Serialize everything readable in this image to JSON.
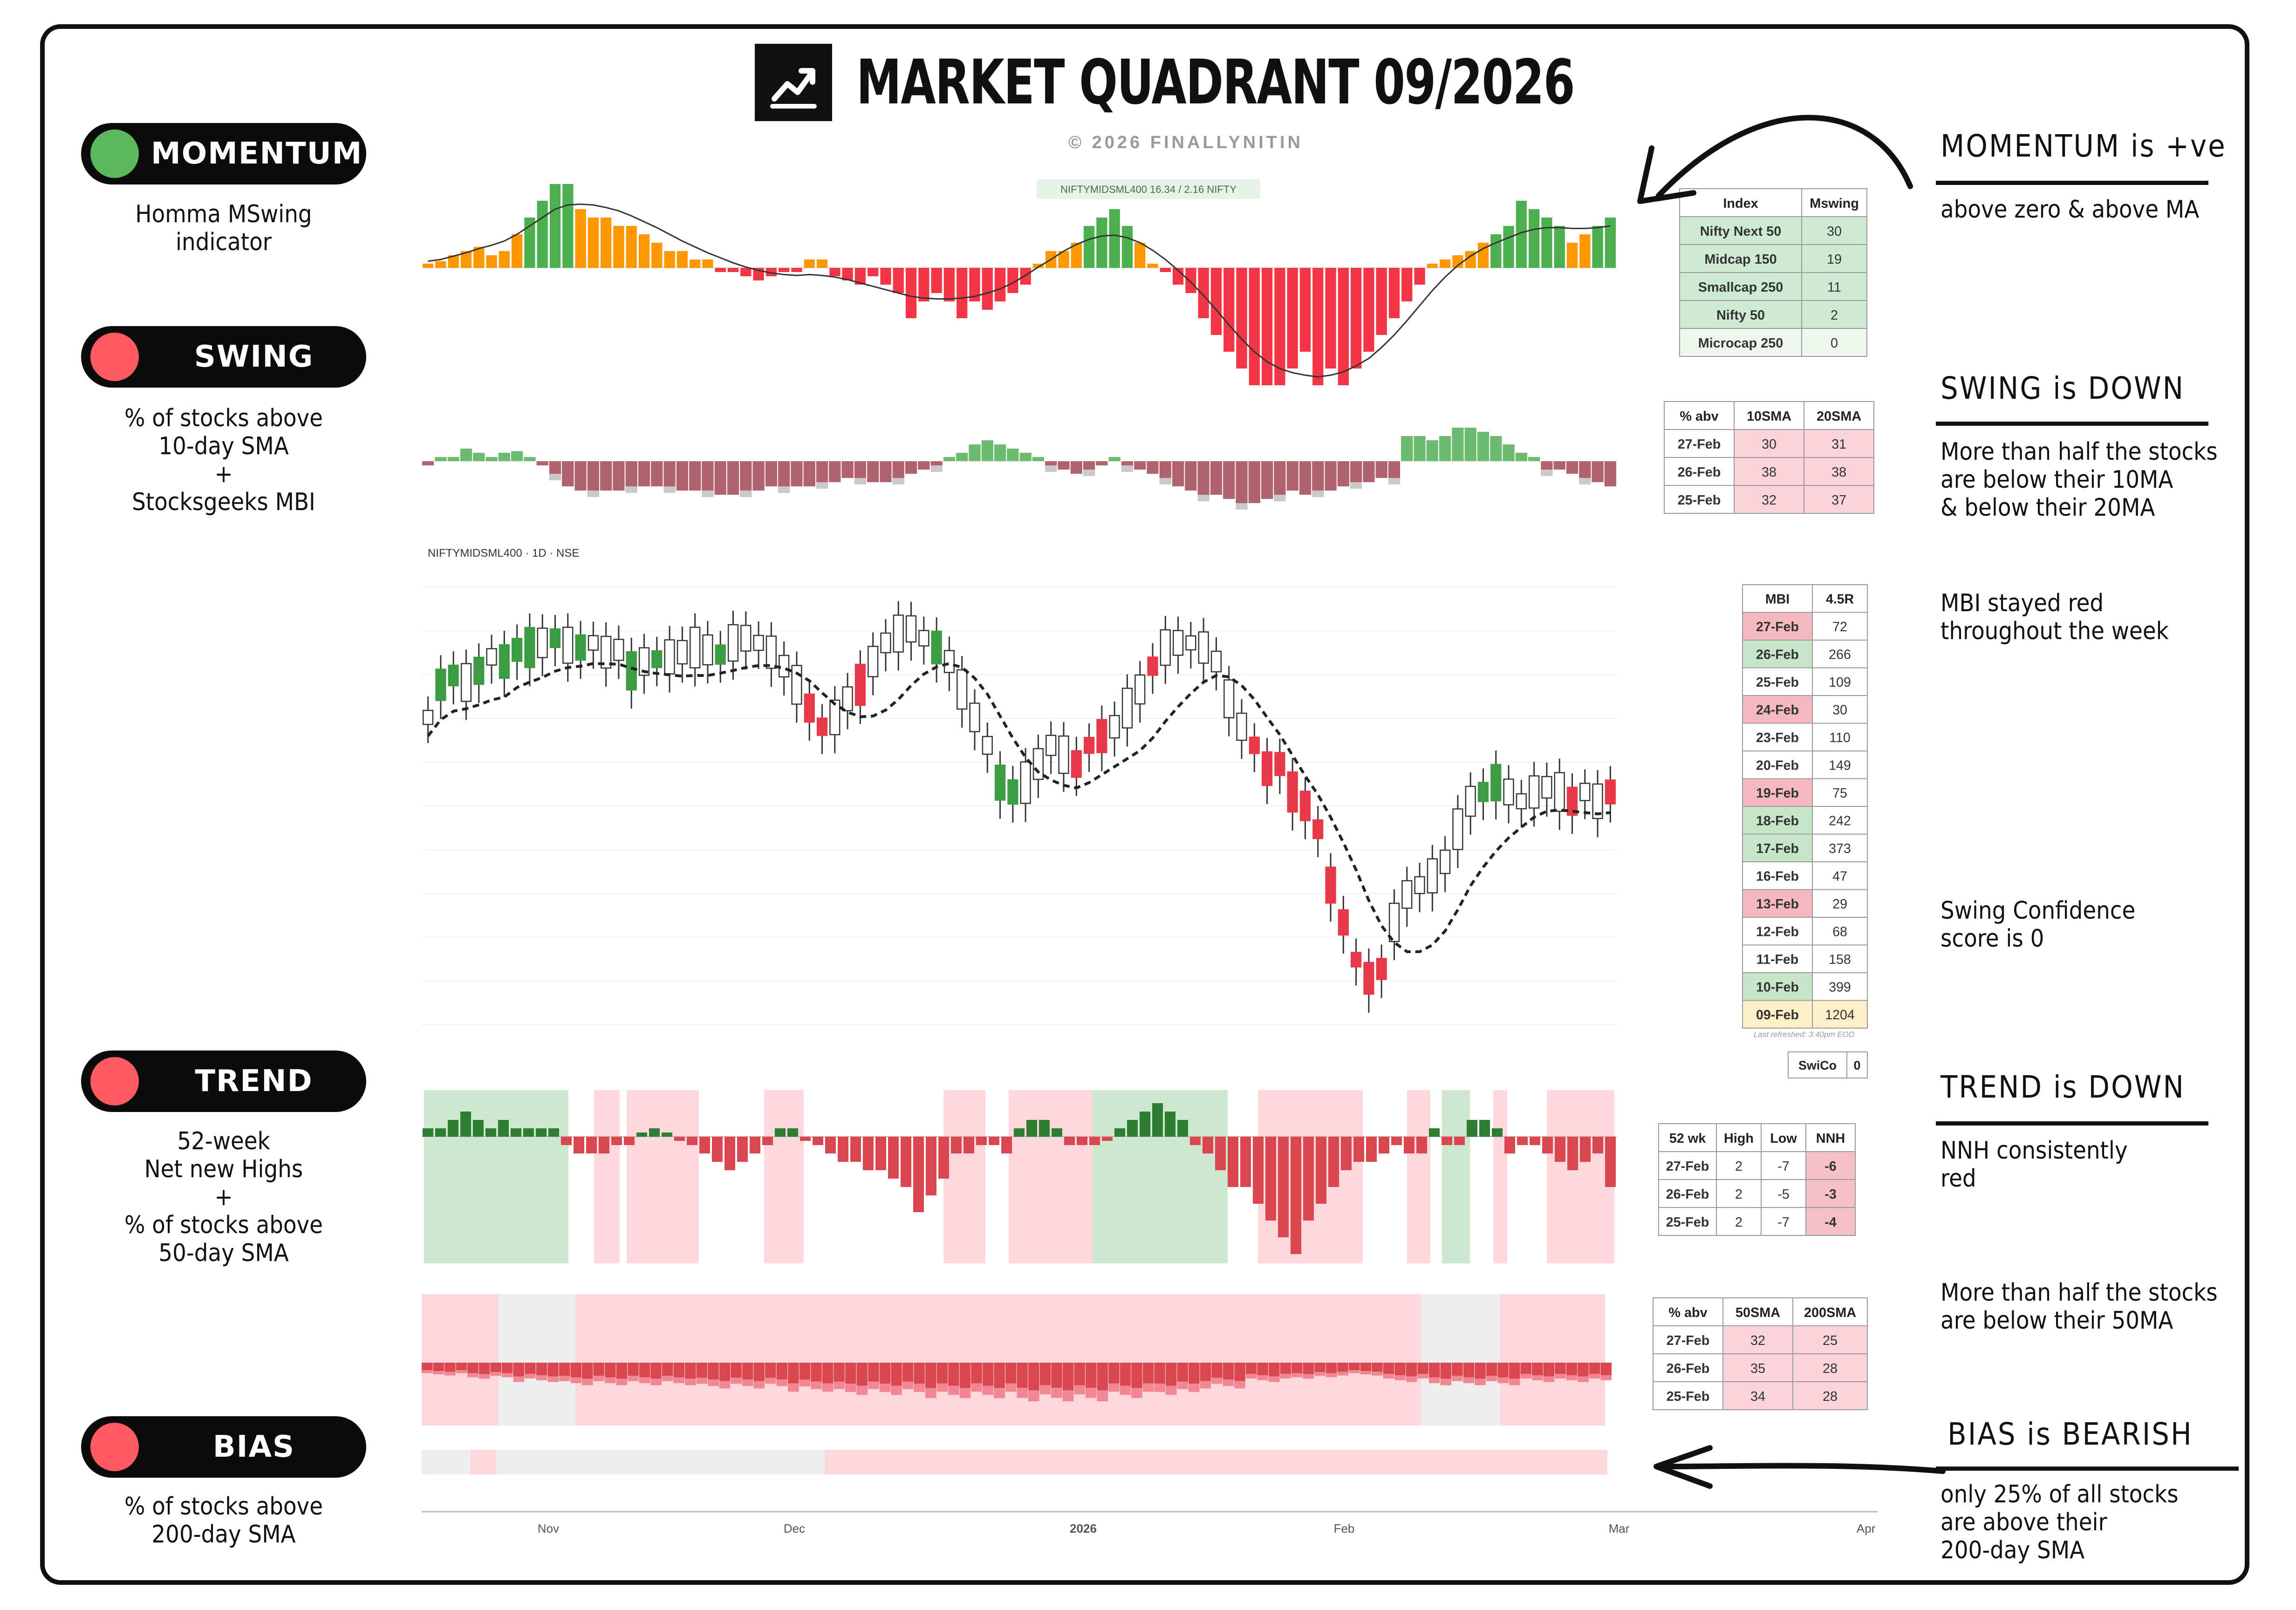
{
  "title": "MARKET QUADRANT 09/2026",
  "copyright": "© 2026 FINALLYNITIN",
  "colors": {
    "green": "#4caf50",
    "red": "#f23645",
    "orange": "#ff9800",
    "bad_dot": "#ff5a5f",
    "good_dot": "#5cb85c",
    "pink": "#fcd7dc",
    "light_green": "#cde8cf"
  },
  "left_panel": [
    {
      "label": "MOMENTUM",
      "status": "green",
      "description": "Homma MSwing\nindicator"
    },
    {
      "label": "SWING",
      "status": "red",
      "description": "% of stocks above\n10-day SMA\n+\nStocksgeeks MBI"
    },
    {
      "label": "TREND",
      "status": "red",
      "description": "52-week\nNet new Highs\n+\n% of stocks above\n50-day SMA"
    },
    {
      "label": "BIAS",
      "status": "red",
      "description": "% of stocks above\n200-day SMA"
    }
  ],
  "right_panel": {
    "momentum": {
      "heading": "MOMENTUM is +ve",
      "text": "above zero & above MA"
    },
    "swing": {
      "heading": "SWING is DOWN",
      "text": "More than half the stocks\nare below their 10MA\n& below their 20MA"
    },
    "mbi_note": "MBI stayed red\nthroughout the week",
    "swico_note": "Swing Confidence\nscore is 0",
    "trend": {
      "heading": "TREND is DOWN",
      "text": "NNH consistently\nred"
    },
    "trend_note": "More than half the stocks\nare below their 50MA",
    "bias": {
      "heading": "BIAS is BEARISH",
      "text": "only 25% of all stocks\nare above their\n200-day SMA"
    }
  },
  "chart_labels": {
    "momentum_legend": "NIFTYMIDSML400  16.34 / 2.16  NIFTY",
    "price_label": "NIFTYMIDSML400 · 1D · NSE",
    "x_ticks": [
      "Nov",
      "Dec",
      "2026",
      "Feb",
      "Mar",
      "Apr"
    ],
    "last_refreshed": "Last refreshed: 3:40pm EOD"
  },
  "tables": {
    "mswing": {
      "headers": [
        "Index",
        "Mswing"
      ],
      "rows": [
        [
          "Nifty Next 50",
          "30"
        ],
        [
          "Midcap 150",
          "19"
        ],
        [
          "Smallcap 250",
          "11"
        ],
        [
          "Nifty 50",
          "2"
        ],
        [
          "Microcap 250",
          "0"
        ]
      ]
    },
    "swing_abv": {
      "headers": [
        "% abv",
        "10SMA",
        "20SMA"
      ],
      "rows": [
        [
          "27-Feb",
          "30",
          "31"
        ],
        [
          "26-Feb",
          "38",
          "38"
        ],
        [
          "25-Feb",
          "32",
          "37"
        ]
      ]
    },
    "mbi": {
      "headers": [
        "MBI",
        "4.5R"
      ],
      "rows": [
        [
          "27-Feb",
          "72",
          "red"
        ],
        [
          "26-Feb",
          "266",
          "green"
        ],
        [
          "25-Feb",
          "109",
          "none"
        ],
        [
          "24-Feb",
          "30",
          "red"
        ],
        [
          "23-Feb",
          "110",
          "none"
        ],
        [
          "20-Feb",
          "149",
          "none"
        ],
        [
          "19-Feb",
          "75",
          "red"
        ],
        [
          "18-Feb",
          "242",
          "green"
        ],
        [
          "17-Feb",
          "373",
          "green"
        ],
        [
          "16-Feb",
          "47",
          "none"
        ],
        [
          "13-Feb",
          "29",
          "red"
        ],
        [
          "12-Feb",
          "68",
          "none"
        ],
        [
          "11-Feb",
          "158",
          "none"
        ],
        [
          "10-Feb",
          "399",
          "green"
        ],
        [
          "09-Feb",
          "1204",
          "yellow"
        ]
      ]
    },
    "swico": {
      "label": "SwiCo",
      "value": "0"
    },
    "nnh": {
      "headers": [
        "52 wk",
        "High",
        "Low",
        "NNH"
      ],
      "rows": [
        [
          "27-Feb",
          "2",
          "-7",
          "-6"
        ],
        [
          "26-Feb",
          "2",
          "-5",
          "-3"
        ],
        [
          "25-Feb",
          "2",
          "-7",
          "-4"
        ]
      ]
    },
    "sma50_200": {
      "headers": [
        "% abv",
        "50SMA",
        "200SMA"
      ],
      "rows": [
        [
          "27-Feb",
          "32",
          "25"
        ],
        [
          "26-Feb",
          "35",
          "28"
        ],
        [
          "25-Feb",
          "34",
          "28"
        ]
      ]
    }
  },
  "chart_data": [
    {
      "type": "bar",
      "name": "mswing",
      "series_colors": "green above MA and above zero, orange between, red below zero",
      "values": [
        0.5,
        0.8,
        1.5,
        2,
        2.5,
        1.5,
        2,
        4,
        6,
        8,
        10,
        10,
        7,
        6,
        6,
        5,
        5,
        4,
        3,
        2,
        2,
        1,
        1,
        -0.5,
        -0.5,
        -1,
        -1.5,
        -1,
        -0.5,
        -0.5,
        1,
        1,
        -1,
        -1.5,
        -2,
        -1,
        -2,
        -3,
        -6,
        -4,
        -3,
        -4,
        -6,
        -4,
        -5,
        -4,
        -3,
        -2,
        0.5,
        2,
        2,
        3,
        5,
        6,
        7,
        5,
        3,
        0.5,
        -0.5,
        -2,
        -3,
        -6,
        -8,
        -10,
        -12,
        -14,
        -14,
        -14,
        -12,
        -10,
        -14,
        -12,
        -14,
        -12,
        -10,
        -8,
        -6,
        -4,
        -2,
        0.5,
        1,
        1.5,
        2,
        3,
        4,
        5,
        8,
        7,
        6,
        5,
        3,
        4,
        5,
        6
      ],
      "ma": [
        0.8,
        1,
        1.4,
        1.8,
        2.3,
        2.7,
        3.2,
        4,
        5,
        6,
        7,
        7.5,
        7.6,
        7.5,
        7.2,
        6.8,
        6.2,
        5.5,
        4.8,
        4,
        3.2,
        2.5,
        1.8,
        1.2,
        0.6,
        0.1,
        -0.3,
        -0.6,
        -0.8,
        -0.9,
        -0.8,
        -0.9,
        -1.1,
        -1.4,
        -1.8,
        -2.2,
        -2.6,
        -3,
        -3.4,
        -3.6,
        -3.7,
        -3.7,
        -3.6,
        -3.4,
        -3,
        -2.5,
        -1.8,
        -0.9,
        0.1,
        1,
        2,
        2.8,
        3.4,
        3.8,
        3.9,
        3.6,
        3,
        2.1,
        1,
        -0.3,
        -1.7,
        -3.3,
        -5,
        -6.8,
        -8.5,
        -10,
        -11.2,
        -12,
        -12.5,
        -12.8,
        -13,
        -12.8,
        -12.4,
        -11.7,
        -10.8,
        -9.5,
        -8,
        -6.3,
        -4.5,
        -2.7,
        -1.1,
        0.3,
        1.4,
        2.3,
        3,
        3.6,
        4.2,
        4.6,
        4.8,
        4.8,
        4.7,
        4.7,
        4.8,
        5
      ]
    },
    {
      "type": "bar",
      "name": "pct_above_10_20_sma",
      "values": [
        -0.5,
        0.5,
        0.5,
        1.5,
        1,
        0.5,
        1,
        1.2,
        0.5,
        -0.5,
        -1.5,
        -3,
        -3.5,
        -3.5,
        -3.5,
        -3.5,
        -3,
        -3,
        -3,
        -3,
        -3.5,
        -3.5,
        -3.5,
        -4,
        -4,
        -3.5,
        -3.5,
        -3,
        -3,
        -3,
        -3,
        -2.5,
        -2.5,
        -2,
        -2,
        -2.5,
        -2.5,
        -2,
        -1.5,
        -1,
        -0.5,
        0.5,
        1,
        2,
        2.5,
        2,
        1.5,
        1,
        0.5,
        -0.5,
        -1,
        -1.5,
        -1,
        -0.5,
        0.5,
        -0.5,
        -1,
        -1.5,
        -2,
        -3,
        -3.5,
        -4,
        -4,
        -4.5,
        -5,
        -5,
        -4.5,
        -4,
        -3.5,
        -4,
        -3.5,
        -3.5,
        -3,
        -2.5,
        -2.5,
        -2,
        -2,
        3,
        3,
        2.5,
        3,
        4,
        4,
        3.5,
        3,
        2,
        1,
        0.5,
        -1,
        -1,
        -1.5,
        -2,
        -2.5,
        -3
      ]
    },
    {
      "type": "line",
      "name": "price_sma20_dashed",
      "note": "candlestick price series of NIFTYMIDSML400, no printed axis values"
    },
    {
      "type": "bar",
      "name": "nnh_52wk",
      "values": [
        1,
        1,
        2,
        3,
        2,
        1,
        2,
        1,
        1,
        1,
        1,
        -1,
        -2,
        -2,
        -2,
        -1,
        -1,
        0.5,
        1,
        0.5,
        -0.5,
        -1,
        -2,
        -3,
        -4,
        -3,
        -2,
        -1,
        1,
        1,
        -0.5,
        -1,
        -2,
        -3,
        -3,
        -4,
        -4,
        -5,
        -6,
        -9,
        -7,
        -5,
        -2,
        -2,
        -1,
        -1,
        -2,
        1,
        2,
        2,
        1,
        -1,
        -1,
        -1,
        -0.5,
        1,
        2,
        3,
        4,
        3,
        2,
        -1,
        -2,
        -4,
        -6,
        -6,
        -8,
        -10,
        -12,
        -14,
        -10,
        -8,
        -6,
        -4,
        -3,
        -3,
        -2,
        -1,
        -2,
        -2,
        1,
        -1,
        -1,
        2,
        2,
        1,
        -2,
        -1,
        -1,
        -2,
        -3,
        -4,
        -3,
        -2,
        -6
      ],
      "regimes": [
        "green",
        "pink",
        "white",
        "pink",
        "white",
        "pink",
        "white",
        "pink",
        "green",
        "pink",
        "white",
        "pink",
        "green",
        "pink"
      ]
    },
    {
      "type": "bar",
      "name": "pct_above_50_200_sma",
      "values": [
        -2,
        -2.5,
        -3,
        -3.5,
        -3.5,
        -3.5,
        -4,
        -4,
        -4.5,
        -5,
        -5,
        -5.5,
        -5.5,
        -6,
        -6,
        -5.5,
        -5,
        -4,
        -3,
        -2.5,
        -2,
        -3,
        -3.5,
        -3.5,
        -3,
        -3
      ]
    },
    {
      "type": "bar",
      "name": "bias_200sma",
      "regimes": [
        "grey",
        "pink",
        "grey",
        "pink"
      ]
    }
  ]
}
